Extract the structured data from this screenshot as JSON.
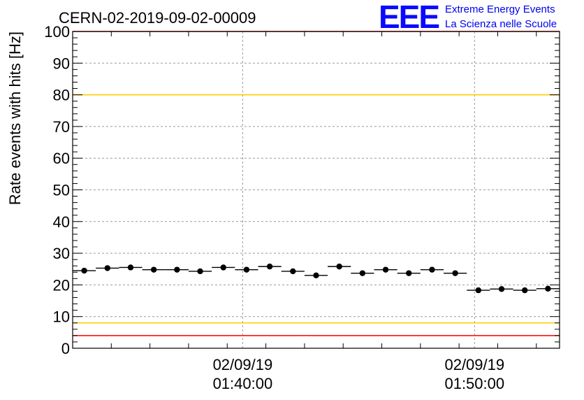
{
  "chart_data": {
    "type": "scatter",
    "title": "CERN-02-2019-09-02-00009",
    "ylabel": "Rate events with hits [Hz]",
    "xlabel": "",
    "ylim": [
      0,
      100
    ],
    "yticks": [
      0,
      10,
      20,
      30,
      40,
      50,
      60,
      70,
      80,
      90,
      100
    ],
    "xlim": [
      "01:32:40",
      "01:53:40"
    ],
    "xtick_labels": [
      {
        "date": "02/09/19",
        "time": "01:40:00"
      },
      {
        "date": "02/09/19",
        "time": "01:50:00"
      }
    ],
    "grid": true,
    "series": [
      {
        "points": [
          {
            "t": "01:33:10",
            "y": 24.5
          },
          {
            "t": "01:34:10",
            "y": 25.3
          },
          {
            "t": "01:35:10",
            "y": 25.5
          },
          {
            "t": "01:36:10",
            "y": 24.8
          },
          {
            "t": "01:37:10",
            "y": 24.8
          },
          {
            "t": "01:38:10",
            "y": 24.3
          },
          {
            "t": "01:39:10",
            "y": 25.5
          },
          {
            "t": "01:40:10",
            "y": 24.8
          },
          {
            "t": "01:41:10",
            "y": 25.8
          },
          {
            "t": "01:42:10",
            "y": 24.3
          },
          {
            "t": "01:43:10",
            "y": 23.0
          },
          {
            "t": "01:44:10",
            "y": 25.8
          },
          {
            "t": "01:45:10",
            "y": 23.7
          },
          {
            "t": "01:46:10",
            "y": 24.8
          },
          {
            "t": "01:47:10",
            "y": 23.7
          },
          {
            "t": "01:48:10",
            "y": 24.8
          },
          {
            "t": "01:49:10",
            "y": 23.7
          },
          {
            "t": "01:50:10",
            "y": 18.3
          },
          {
            "t": "01:51:10",
            "y": 18.7
          },
          {
            "t": "01:52:10",
            "y": 18.3
          },
          {
            "t": "01:53:10",
            "y": 18.8
          }
        ]
      }
    ],
    "reference_lines": [
      {
        "y": 100,
        "color": "#ff0000"
      },
      {
        "y": 80,
        "color": "#ffcc00"
      },
      {
        "y": 8,
        "color": "#ffcc00"
      },
      {
        "y": 4,
        "color": "#ff0000"
      }
    ]
  },
  "logo": {
    "mark": "EEE",
    "line1": "Extreme Energy Events",
    "line2": "La Scienza nelle Scuole",
    "color": "#0000ee"
  }
}
